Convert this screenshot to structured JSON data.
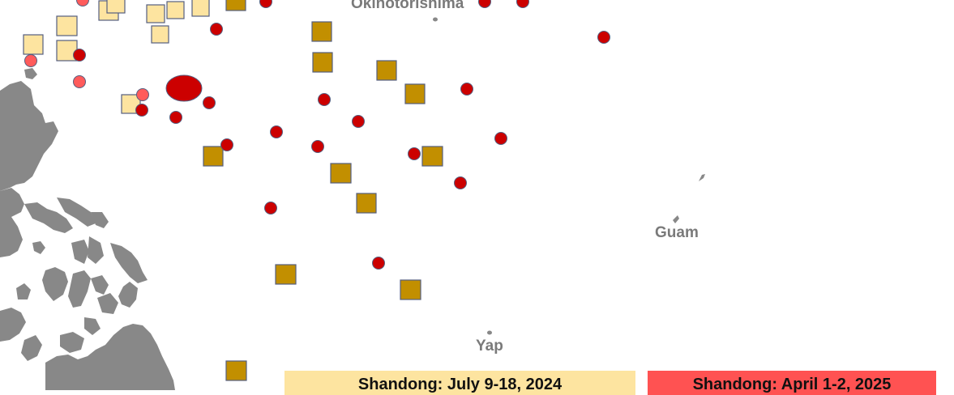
{
  "map": {
    "colors": {
      "land": "#888888",
      "ocean": "#ffffff",
      "place_label": "#7a7a7a",
      "marker_red": "#cc0000",
      "marker_light_red": "#ff5b5b",
      "marker_gold": "#c28f00",
      "marker_pale_yellow": "#fde4a0",
      "marker_outline": "#555f80"
    },
    "places": {
      "okinotorishima": "Okinotorishima",
      "guam": "Guam",
      "yap": "Yap"
    },
    "legend": {
      "july_2024": {
        "label": "Shandong: July 9-18, 2024",
        "color": "#fde4a0"
      },
      "april_2025": {
        "label": "Shandong: April 1-2, 2025",
        "color": "#ff5252"
      }
    }
  }
}
